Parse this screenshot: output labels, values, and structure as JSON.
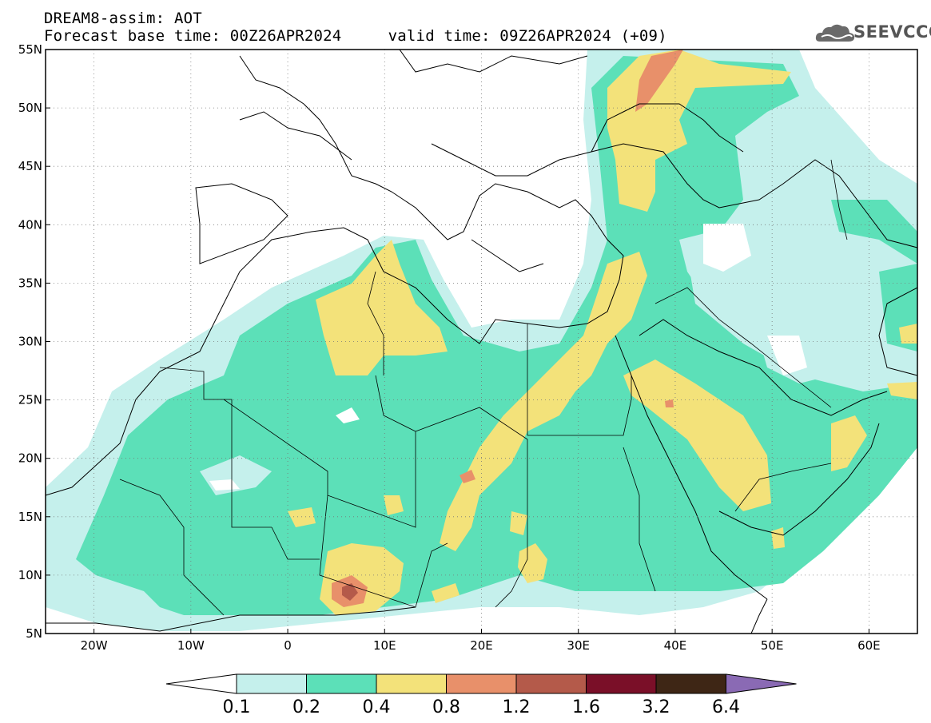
{
  "header": {
    "title": "DREAM8-assim: AOT",
    "subtitle": "Forecast base time: 00Z26APR2024     valid time: 09Z26APR2024 (+09)"
  },
  "logo": {
    "text": "SEEVCCC",
    "icon": "cloud-logo-icon"
  },
  "map": {
    "lon_range": [
      -25,
      65
    ],
    "lat_range": [
      5,
      55
    ],
    "grid": "dotted",
    "y_ticks": [
      {
        "lat": 55,
        "label": "55N"
      },
      {
        "lat": 50,
        "label": "50N"
      },
      {
        "lat": 45,
        "label": "45N"
      },
      {
        "lat": 40,
        "label": "40N"
      },
      {
        "lat": 35,
        "label": "35N"
      },
      {
        "lat": 30,
        "label": "30N"
      },
      {
        "lat": 25,
        "label": "25N"
      },
      {
        "lat": 20,
        "label": "20N"
      },
      {
        "lat": 15,
        "label": "15N"
      },
      {
        "lat": 10,
        "label": "10N"
      },
      {
        "lat": 5,
        "label": "5N"
      }
    ],
    "x_ticks": [
      {
        "lon": -20,
        "label": "20W"
      },
      {
        "lon": -10,
        "label": "10W"
      },
      {
        "lon": 0,
        "label": "0"
      },
      {
        "lon": 10,
        "label": "10E"
      },
      {
        "lon": 20,
        "label": "20E"
      },
      {
        "lon": 30,
        "label": "30E"
      },
      {
        "lon": 40,
        "label": "40E"
      },
      {
        "lon": 50,
        "label": "50E"
      },
      {
        "lon": 60,
        "label": "60E"
      }
    ]
  },
  "colorbar": {
    "levels": [
      "0.1",
      "0.2",
      "0.4",
      "0.8",
      "1.2",
      "1.6",
      "3.2",
      "6.4"
    ],
    "colors": [
      "#c5f0ec",
      "#5ce0b8",
      "#f3e27a",
      "#e8906a",
      "#b45a4a",
      "#7a0f28",
      "#3e2615",
      "#8a6ab4"
    ],
    "under_color": "#ffffff"
  }
}
